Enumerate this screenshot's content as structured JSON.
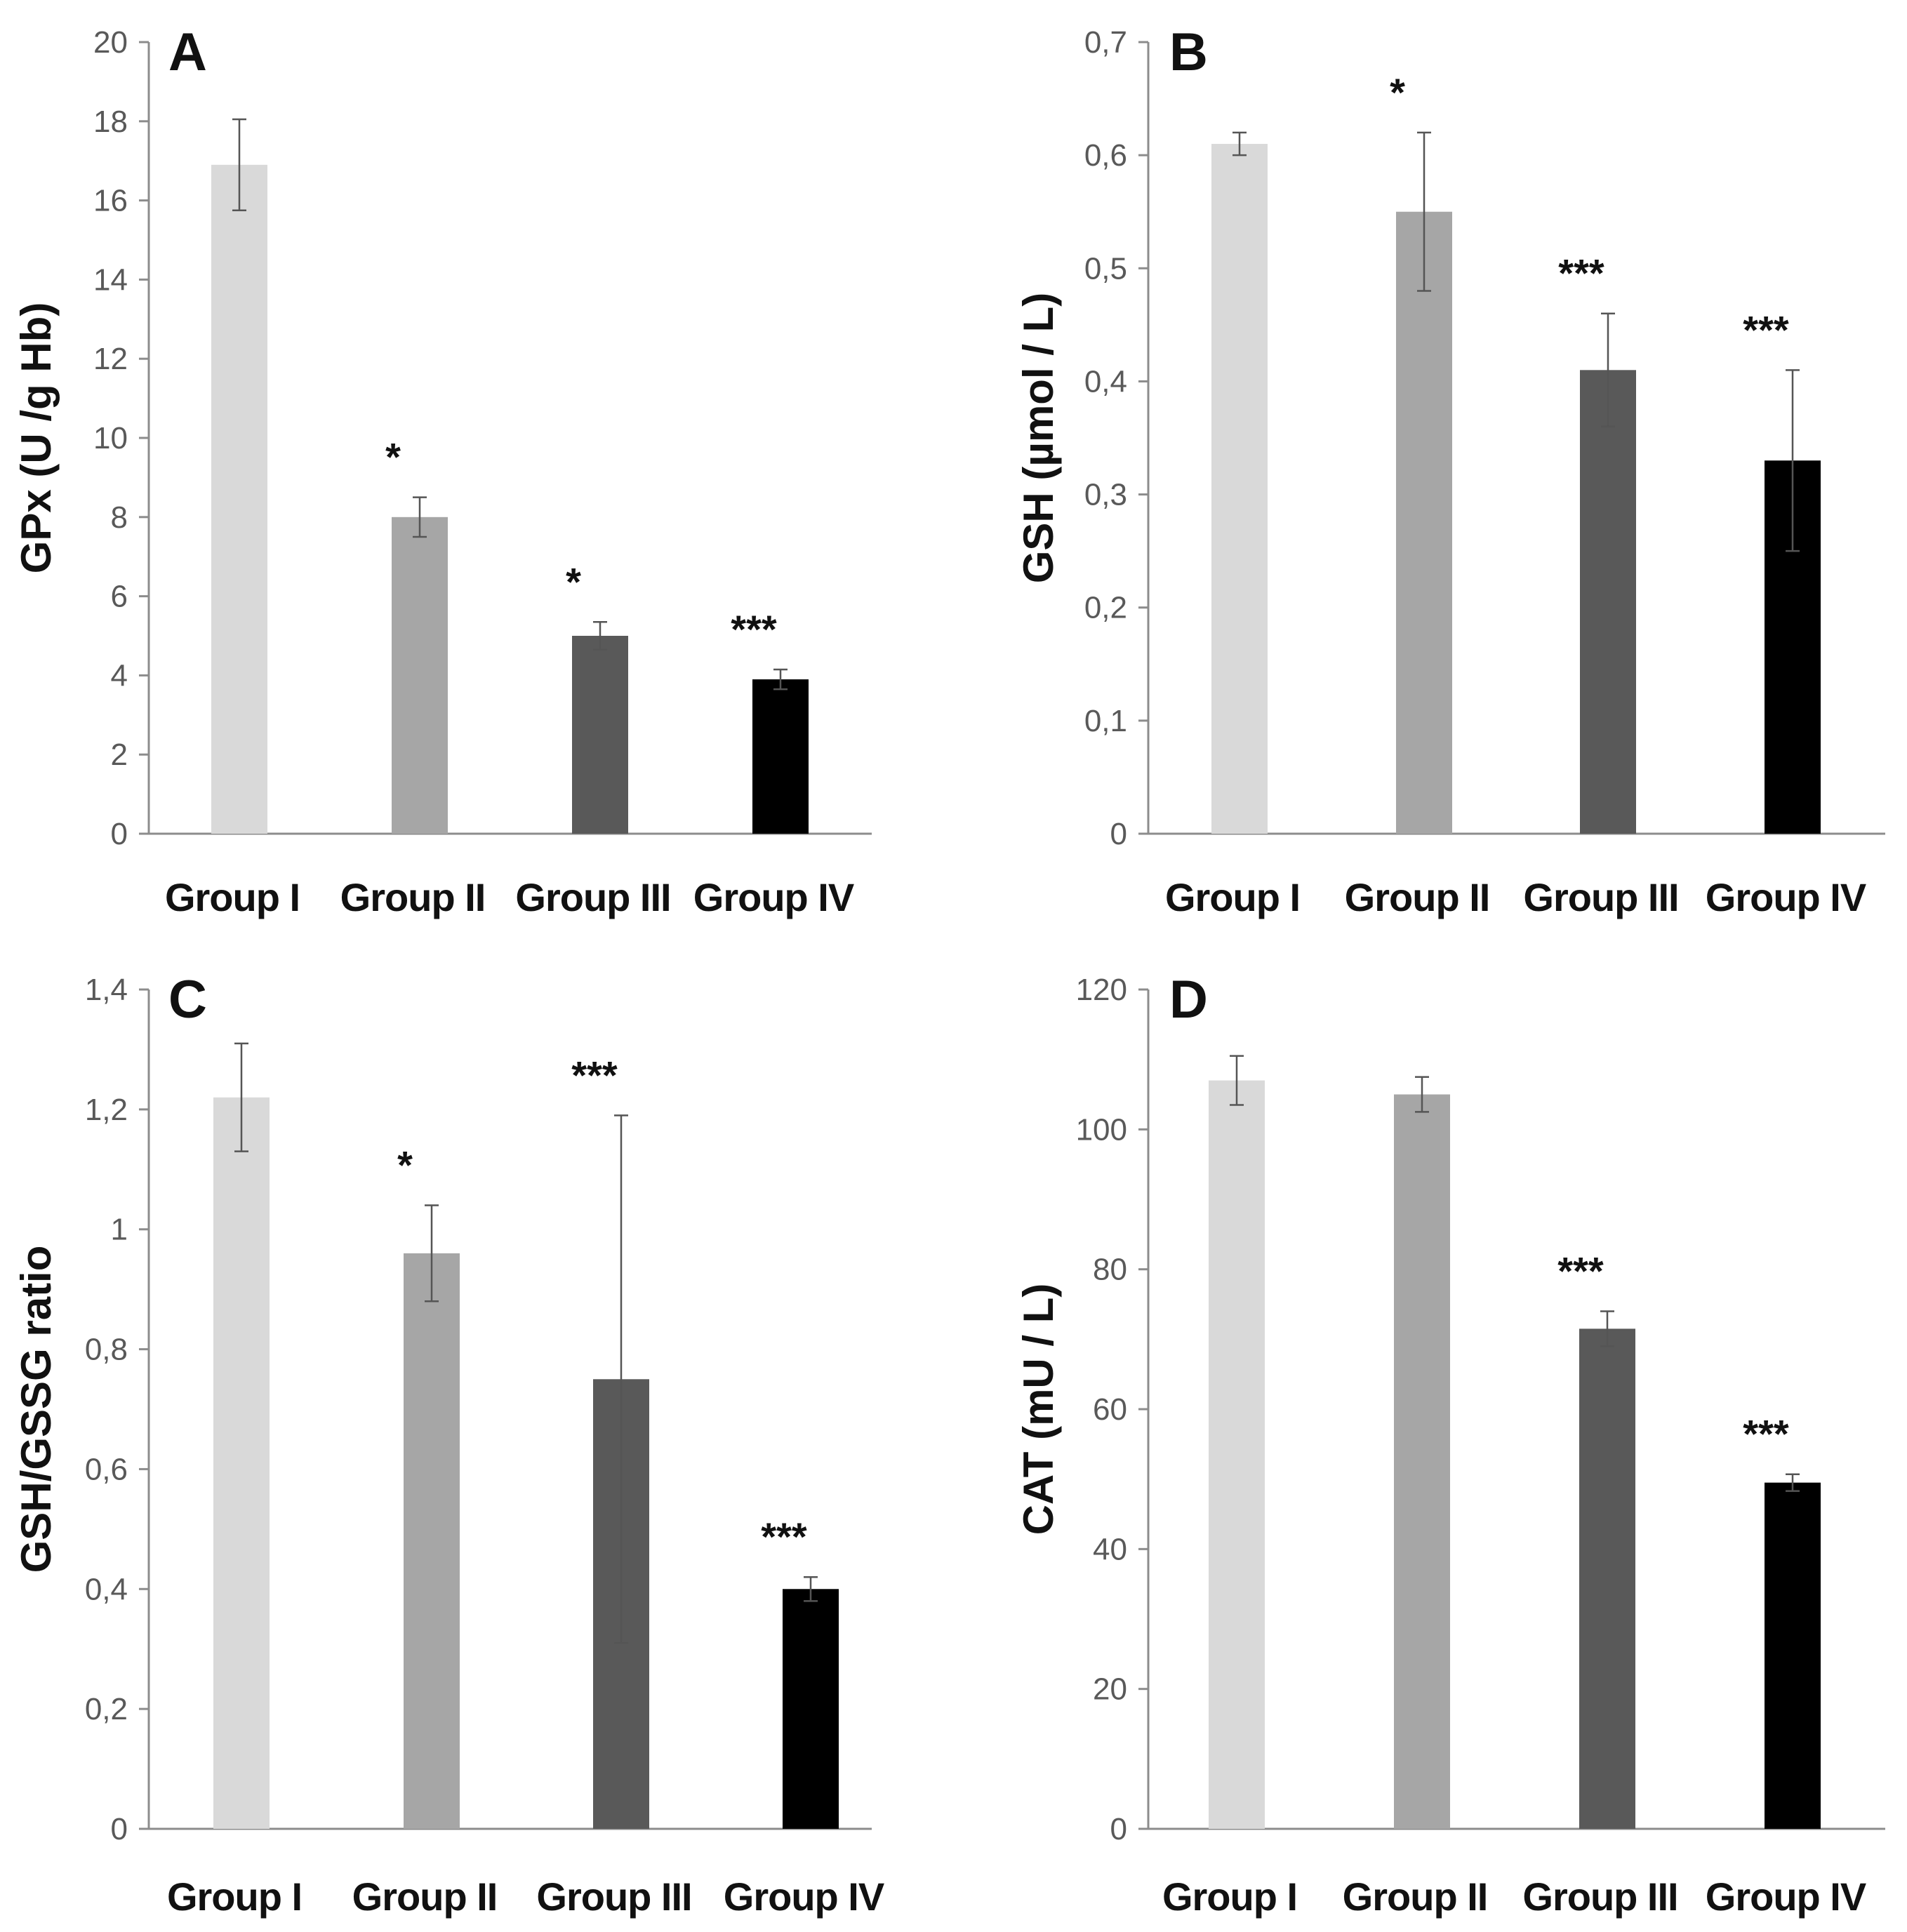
{
  "chart_data": [
    {
      "type": "bar",
      "panel_label": "A",
      "categories": [
        "Group I",
        "Group II",
        "Group III",
        "Group IV"
      ],
      "values": [
        16.9,
        8.0,
        5.0,
        3.9
      ],
      "errors": [
        1.15,
        0.5,
        0.35,
        0.25
      ],
      "significance": [
        "",
        "*",
        "*",
        "***"
      ],
      "ylabel": "GPx  (U /g Hb)",
      "ylim": [
        0,
        20
      ],
      "yticks": [
        0,
        2,
        4,
        6,
        8,
        10,
        12,
        14,
        16,
        18,
        20
      ],
      "ytick_labels": [
        "0",
        "2",
        "4",
        "6",
        "8",
        "10",
        "12",
        "14",
        "16",
        "18",
        "20"
      ],
      "grid": false,
      "legend": "none",
      "colors": [
        "#d9d9d9",
        "#a6a6a6",
        "#595959",
        "#000000"
      ]
    },
    {
      "type": "bar",
      "panel_label": "B",
      "categories": [
        "Group I",
        "Group II",
        "Group III",
        "Group IV"
      ],
      "values": [
        0.61,
        0.55,
        0.41,
        0.33
      ],
      "errors": [
        0.01,
        0.07,
        0.05,
        0.08
      ],
      "significance": [
        "",
        "*",
        "***",
        "***"
      ],
      "ylabel": "GSH (µmol / L)",
      "ylim": [
        0,
        0.7
      ],
      "yticks": [
        0,
        0.1,
        0.2,
        0.3,
        0.4,
        0.5,
        0.6,
        0.7
      ],
      "ytick_labels": [
        "0",
        "0,1",
        "0,2",
        "0,3",
        "0,4",
        "0,5",
        "0,6",
        "0,7"
      ],
      "grid": false,
      "legend": "none",
      "colors": [
        "#d9d9d9",
        "#a6a6a6",
        "#595959",
        "#000000"
      ]
    },
    {
      "type": "bar",
      "panel_label": "C",
      "categories": [
        "Group I",
        "Group II",
        "Group III",
        "Group IV"
      ],
      "values": [
        1.22,
        0.96,
        0.75,
        0.4
      ],
      "errors": [
        0.09,
        0.08,
        0.44,
        0.02
      ],
      "significance": [
        "",
        "*",
        "***",
        "***"
      ],
      "ylabel": "GSH/GSSG ratio",
      "ylim": [
        0,
        1.4
      ],
      "yticks": [
        0,
        0.2,
        0.4,
        0.6,
        0.8,
        1.0,
        1.2,
        1.4
      ],
      "ytick_labels": [
        "0",
        "0,2",
        "0,4",
        "0,6",
        "0,8",
        "1",
        "1,2",
        "1,4"
      ],
      "grid": false,
      "legend": "none",
      "colors": [
        "#d9d9d9",
        "#a6a6a6",
        "#595959",
        "#000000"
      ]
    },
    {
      "type": "bar",
      "panel_label": "D",
      "categories": [
        "Group I",
        "Group II",
        "Group III",
        "Group IV"
      ],
      "values": [
        107,
        105,
        71.5,
        49.5
      ],
      "errors": [
        3.5,
        2.5,
        2.5,
        1.2
      ],
      "significance": [
        "",
        "",
        "***",
        "***"
      ],
      "ylabel": "CAT (mU / L)",
      "ylim": [
        0,
        120
      ],
      "yticks": [
        0,
        20,
        40,
        60,
        80,
        100,
        120
      ],
      "ytick_labels": [
        "0",
        "20",
        "40",
        "60",
        "80",
        "100",
        "120"
      ],
      "grid": false,
      "legend": "none",
      "colors": [
        "#d9d9d9",
        "#a6a6a6",
        "#595959",
        "#000000"
      ]
    }
  ]
}
